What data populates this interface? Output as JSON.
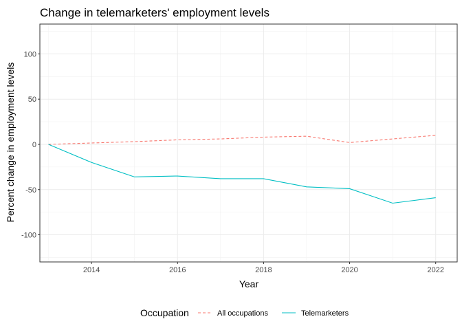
{
  "chart_data": {
    "type": "line",
    "title": "Change in telemarketers' employment levels",
    "xlabel": "Year",
    "ylabel": "Percent change in employment levels",
    "x": [
      2013,
      2014,
      2015,
      2016,
      2017,
      2018,
      2019,
      2020,
      2021,
      2022
    ],
    "xlim": [
      2012.8,
      2022.5
    ],
    "ylim": [
      -130,
      133
    ],
    "xticks": [
      2014,
      2016,
      2018,
      2020,
      2022
    ],
    "yticks": [
      -100,
      -50,
      0,
      50,
      100
    ],
    "grid": true,
    "legend": {
      "title": "Occupation",
      "position": "bottom"
    },
    "series": [
      {
        "name": "All occupations",
        "values": [
          0,
          1.5,
          3,
          5,
          6,
          8,
          9,
          2,
          6,
          10
        ],
        "color": "#F8766D",
        "style": "dashed"
      },
      {
        "name": "Telemarketers",
        "values": [
          0,
          -20,
          -36,
          -35,
          -38,
          -38,
          -47,
          -49,
          -65,
          -59
        ],
        "color": "#00BFC4",
        "style": "solid"
      }
    ]
  }
}
